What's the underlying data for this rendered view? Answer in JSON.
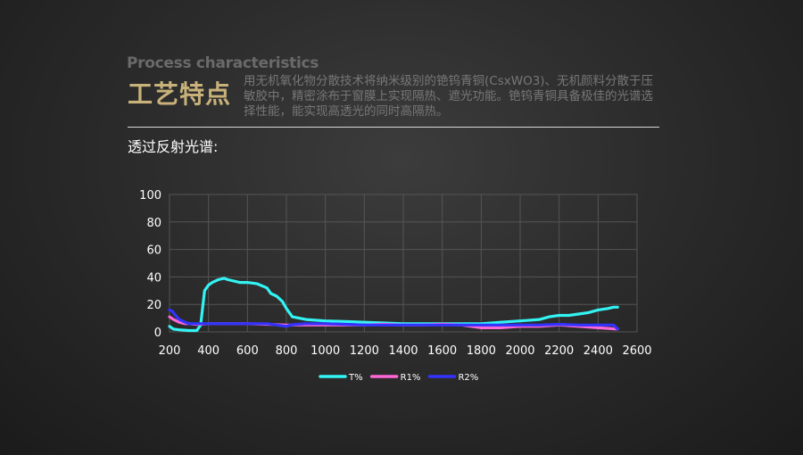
{
  "header": {
    "subtitle_en": "Process characteristics",
    "title_cn": "工艺特点",
    "description": "用无机氧化物分散技术将纳米级别的铯钨青铜(CsxWO3)、无机颜料分散于压敏胶中，精密涂布于窗膜上实现隔热、遮光功能。铯钨青铜具备极佳的光谱选择性能，能实现高透光的同时高隔热。"
  },
  "section": {
    "label": "透过反射光谱:"
  },
  "colors": {
    "T": "#33f3f3",
    "R1": "#ff66d6",
    "R2": "#3333ff",
    "grid": "#555555",
    "tick": "#ffffff"
  },
  "chart_data": {
    "type": "line",
    "title": "",
    "xlabel": "",
    "ylabel": "",
    "xlim": [
      200,
      2600
    ],
    "ylim": [
      0,
      100
    ],
    "xticks": [
      200,
      400,
      600,
      800,
      1000,
      1200,
      1400,
      1600,
      1800,
      2000,
      2200,
      2400,
      2600
    ],
    "yticks": [
      0,
      20,
      40,
      60,
      80,
      100
    ],
    "grid": true,
    "legend_position": "bottom",
    "series": [
      {
        "name": "T%",
        "color": "#33f3f3",
        "x": [
          200,
          220,
          250,
          300,
          340,
          360,
          380,
          400,
          420,
          450,
          480,
          500,
          530,
          560,
          600,
          650,
          700,
          720,
          750,
          780,
          800,
          830,
          900,
          1000,
          1100,
          1200,
          1300,
          1400,
          1500,
          1600,
          1700,
          1800,
          1900,
          2000,
          2100,
          2150,
          2200,
          2250,
          2300,
          2350,
          2400,
          2450,
          2480,
          2500
        ],
        "values": [
          4,
          2,
          1.5,
          1,
          1,
          5,
          30,
          34,
          36,
          38,
          39,
          38,
          37,
          36,
          36,
          35,
          32,
          28,
          26,
          22,
          17,
          11,
          9,
          8,
          7.5,
          7,
          6.5,
          6,
          6,
          6,
          6,
          6,
          7,
          8,
          9,
          11,
          12,
          12,
          13,
          14,
          16,
          17,
          18,
          18
        ]
      },
      {
        "name": "R1%",
        "color": "#ff66d6",
        "x": [
          200,
          220,
          250,
          280,
          300,
          330,
          350,
          400,
          450,
          500,
          600,
          700,
          800,
          900,
          1000,
          1100,
          1200,
          1300,
          1400,
          1500,
          1600,
          1700,
          1800,
          1900,
          2000,
          2100,
          2200,
          2300,
          2400,
          2450,
          2500
        ],
        "values": [
          11,
          9,
          7,
          6,
          6,
          5.5,
          5.5,
          6,
          6,
          6,
          6,
          5.5,
          5,
          5,
          5,
          5,
          5,
          5.5,
          5,
          5,
          5.5,
          5,
          3,
          3,
          4,
          4,
          5,
          4,
          3,
          2.5,
          2
        ]
      },
      {
        "name": "R2%",
        "color": "#3333ff",
        "x": [
          200,
          215,
          230,
          250,
          280,
          300,
          330,
          350,
          400,
          450,
          500,
          600,
          700,
          750,
          800,
          820,
          850,
          900,
          1000,
          1100,
          1200,
          1300,
          1400,
          1500,
          1600,
          1700,
          1800,
          1900,
          2000,
          2100,
          2200,
          2300,
          2400,
          2450,
          2480,
          2500
        ],
        "values": [
          16,
          15,
          12,
          9,
          7,
          6,
          6,
          6,
          6,
          6,
          6,
          6,
          6,
          5,
          4,
          5,
          5.5,
          6,
          6,
          5.5,
          5,
          5,
          5,
          5,
          5,
          5,
          5,
          5,
          5,
          5,
          5.5,
          5,
          5,
          5,
          5,
          2
        ]
      }
    ]
  }
}
